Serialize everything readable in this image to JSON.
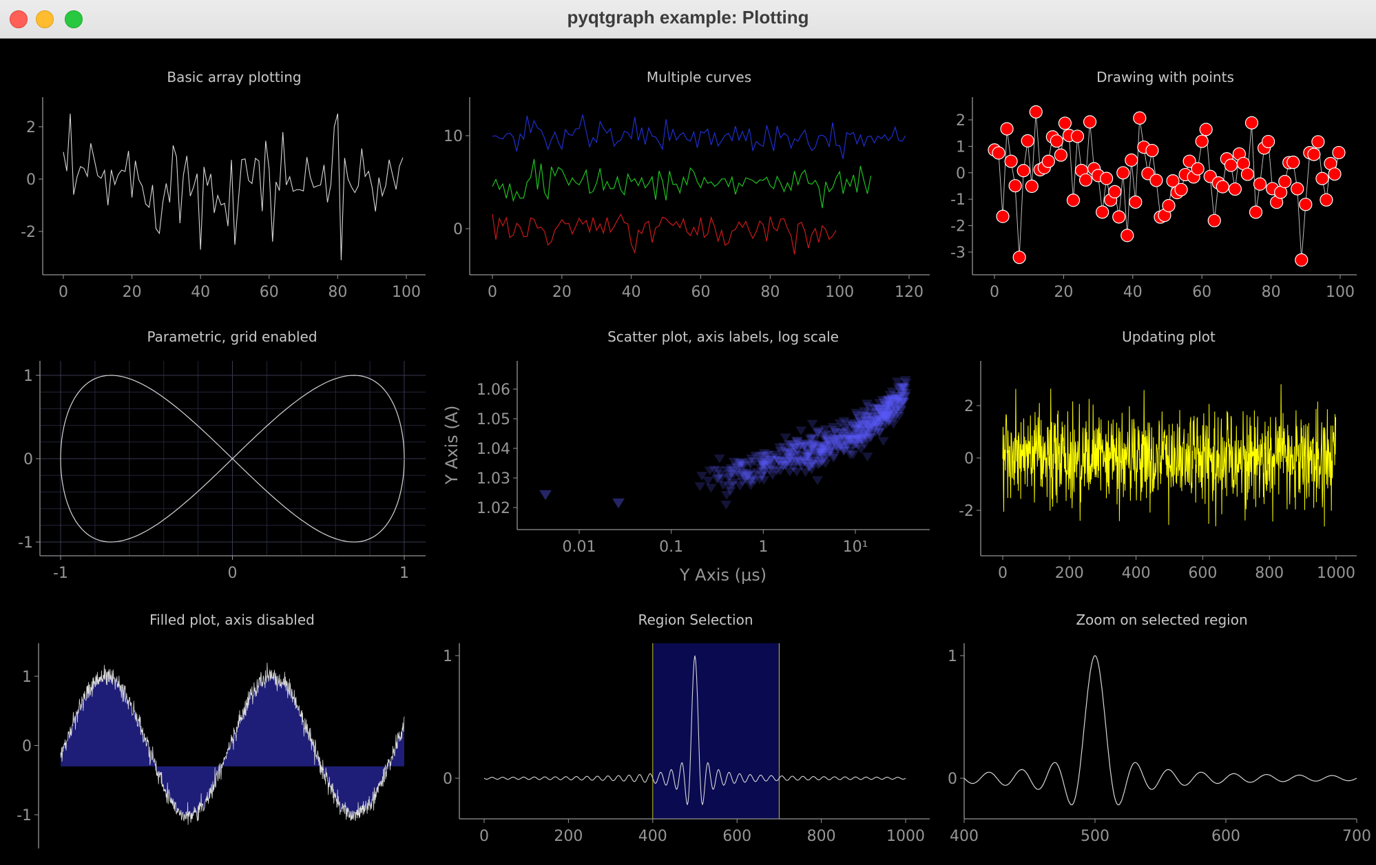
{
  "window": {
    "title": "pyqtgraph example: Plotting"
  },
  "colors": {
    "background": "#000000",
    "axis": "#969696",
    "text": "#c8c8c8",
    "white_curve": "#d8d8d8",
    "blue_curve": "#1f2fd0",
    "green_curve": "#1fc21f",
    "red_curve": "#cc1a1a",
    "point_fill": "#ff0000",
    "scatter_point": "#5a5aff",
    "yellow_curve": "#ffff00",
    "fill_brush": "#1e1e78",
    "region_fill": "#0a0a50",
    "region_edge": "#c8c828"
  },
  "plots": [
    {
      "id": "basic",
      "title": "Basic array plotting",
      "chart_data": {
        "type": "line",
        "series_description": "100 random normal samples",
        "xlim": [
          0,
          100
        ],
        "ylim": [
          -3.2,
          2.6
        ],
        "xticks": [
          "0",
          "20",
          "40",
          "60",
          "80",
          "100"
        ],
        "yticks": [
          "2",
          "0",
          "-2"
        ]
      }
    },
    {
      "id": "multi",
      "title": "Multiple curves",
      "chart_data": {
        "type": "line",
        "series": [
          {
            "color": "blue",
            "offset": 10,
            "length": 120
          },
          {
            "color": "green",
            "offset": 5,
            "length": 110
          },
          {
            "color": "red",
            "offset": 0,
            "length": 100
          }
        ],
        "xlim": [
          0,
          120
        ],
        "xticks": [
          "0",
          "20",
          "40",
          "60",
          "80",
          "100",
          "120"
        ],
        "yticks": [
          "10",
          "0"
        ]
      }
    },
    {
      "id": "points",
      "title": "Drawing with points",
      "chart_data": {
        "type": "scatter",
        "series_description": "100 random normal samples joined by lines with red circle symbols",
        "xlim": [
          0,
          100
        ],
        "ylim": [
          -3.3,
          2.3
        ],
        "xticks": [
          "0",
          "20",
          "40",
          "60",
          "80",
          "100"
        ],
        "yticks": [
          "2",
          "1",
          "0",
          "-1",
          "-2",
          "-3"
        ]
      }
    },
    {
      "id": "param",
      "title": "Parametric, grid enabled",
      "chart_data": {
        "type": "line",
        "series_description": "x = cos(t), y = sin(2t)",
        "xlim": [
          -1,
          1
        ],
        "ylim": [
          -1,
          1
        ],
        "grid": true,
        "xticks": [
          "-1",
          "0",
          "1"
        ],
        "yticks": [
          "1",
          "0",
          "-1"
        ]
      }
    },
    {
      "id": "scatter",
      "title": "Scatter plot, axis labels, log scale",
      "xlabel": "Y Axis (μs)",
      "ylabel": "Y Axis (A)",
      "chart_data": {
        "type": "scatter",
        "x_scale": "log",
        "xlim": [
          0.002,
          50
        ],
        "ylim": [
          1.015,
          1.064
        ],
        "xticks": [
          "0.01",
          "0.1",
          "1",
          "10¹"
        ],
        "yticks": [
          "1.06",
          "1.05",
          "1.04",
          "1.03",
          "1.02"
        ]
      }
    },
    {
      "id": "update",
      "title": "Updating plot",
      "chart_data": {
        "type": "line",
        "series_description": "1000 random normal samples",
        "xlim": [
          0,
          1000
        ],
        "ylim": [
          -3,
          3
        ],
        "xticks": [
          "0",
          "200",
          "400",
          "600",
          "800",
          "1000"
        ],
        "yticks": [
          "2",
          "0",
          "-2"
        ]
      }
    },
    {
      "id": "filled",
      "title": "Filled plot, axis disabled",
      "chart_data": {
        "type": "area",
        "series_description": "sin(x) + noise, filled to -0.3",
        "fill_level": -0.3,
        "ylim": [
          -1.4,
          1.4
        ],
        "yticks": [
          "1",
          "0",
          "-1"
        ]
      }
    },
    {
      "id": "region",
      "title": "Region Selection",
      "chart_data": {
        "type": "line",
        "series_description": "sinc-like pulse centred at 500",
        "xlim": [
          0,
          1000
        ],
        "ylim": [
          -0.35,
          1.1
        ],
        "region": [
          400,
          700
        ],
        "xticks": [
          "0",
          "200",
          "400",
          "600",
          "800",
          "1000"
        ],
        "yticks": [
          "1",
          "0"
        ]
      }
    },
    {
      "id": "zoom",
      "title": "Zoom on selected region",
      "chart_data": {
        "type": "line",
        "series_description": "sinc-like pulse centred at 500",
        "xlim": [
          400,
          700
        ],
        "ylim": [
          -0.35,
          1.1
        ],
        "xticks": [
          "400",
          "500",
          "600",
          "700"
        ],
        "yticks": [
          "1",
          "0"
        ]
      }
    }
  ]
}
